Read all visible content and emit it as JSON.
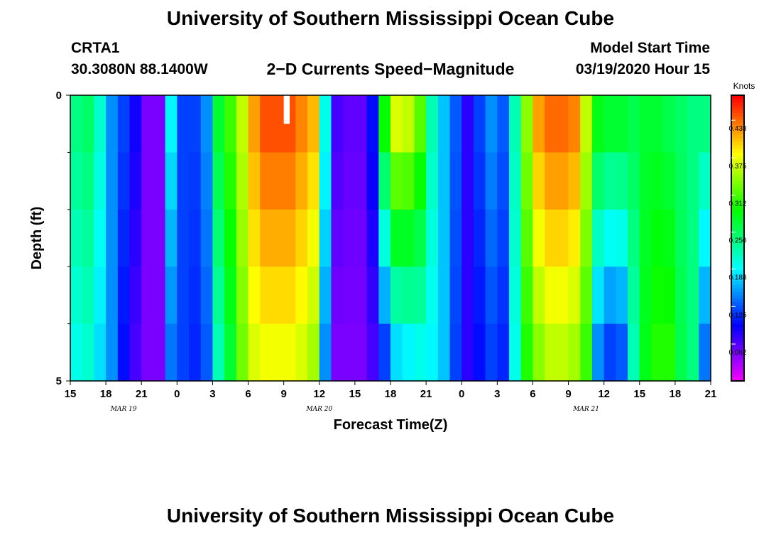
{
  "header": {
    "title": "University of Southern Mississippi Ocean Cube",
    "station": "CRTA1",
    "location": "30.3080N 88.1400W",
    "subtitle": "2−D Currents Speed−Magnitude",
    "model_start_label": "Model Start Time",
    "model_start_value": "03/19/2020 Hour 15"
  },
  "footer": {
    "title": "University of Southern Mississippi Ocean Cube"
  },
  "chart_data": {
    "type": "heatmap",
    "title": "2−D Currents Speed−Magnitude",
    "xlabel": "Forecast Time(Z)",
    "ylabel": "Depth (ft)",
    "x_start_hour": 15,
    "x_end_hour": 69,
    "x_tick_hours": [
      15,
      18,
      21,
      24,
      27,
      30,
      33,
      36,
      39,
      42,
      45,
      48,
      51,
      54,
      57,
      60,
      63,
      66,
      69
    ],
    "x_tick_labels": [
      "15",
      "18",
      "21",
      "0",
      "3",
      "6",
      "9",
      "12",
      "15",
      "18",
      "21",
      "0",
      "3",
      "6",
      "9",
      "12",
      "15",
      "18",
      "21"
    ],
    "date_labels": [
      {
        "text": "MAR 19",
        "hour": 19.5
      },
      {
        "text": "MAR 20",
        "hour": 36
      },
      {
        "text": "MAR 21",
        "hour": 58.5
      }
    ],
    "y_range": [
      0,
      5
    ],
    "y_tick_labels": [
      "0",
      "5"
    ],
    "y_minor_ticks": [
      1,
      2,
      3,
      4
    ],
    "depth_bands": 5,
    "colorbar": {
      "unit": "Knots",
      "min": 0.0,
      "max": 0.48,
      "tick_values": [
        0.438,
        0.375,
        0.312,
        0.25,
        0.188,
        0.125,
        0.062
      ],
      "tick_labels": [
        "0.438",
        "0.375",
        "0.312",
        "0.250",
        "0.188",
        "0.125",
        "0.062"
      ]
    },
    "missing": {
      "hour_start": 33,
      "hour_end": 33.5,
      "depth_start": 0,
      "depth_end": 0.5
    },
    "profile": {
      "hours": [
        15,
        16,
        17,
        18,
        19,
        20,
        21,
        22,
        23,
        24,
        25,
        26,
        27,
        28,
        29,
        30,
        31,
        32,
        33,
        34,
        35,
        36,
        37,
        38,
        39,
        40,
        41,
        42,
        43,
        44,
        45,
        46,
        47,
        48,
        49,
        50,
        51,
        52,
        53,
        54,
        55,
        56,
        57,
        58,
        59,
        60,
        61,
        62,
        63,
        64,
        65,
        66,
        67,
        68,
        69
      ],
      "speed_top": [
        0.24,
        0.25,
        0.21,
        0.15,
        0.12,
        0.09,
        0.05,
        0.05,
        0.19,
        0.12,
        0.12,
        0.15,
        0.27,
        0.31,
        0.36,
        0.42,
        0.45,
        0.45,
        0.45,
        0.43,
        0.41,
        0.2,
        0.07,
        0.06,
        0.06,
        0.1,
        0.29,
        0.37,
        0.36,
        0.32,
        0.22,
        0.17,
        0.13,
        0.08,
        0.12,
        0.15,
        0.13,
        0.22,
        0.34,
        0.42,
        0.44,
        0.44,
        0.43,
        0.36,
        0.28,
        0.27,
        0.27,
        0.26,
        0.27,
        0.27,
        0.26,
        0.25,
        0.24,
        0.24,
        0.21
      ],
      "speed_bottom": [
        0.2,
        0.21,
        0.18,
        0.15,
        0.1,
        0.07,
        0.05,
        0.05,
        0.14,
        0.12,
        0.11,
        0.13,
        0.22,
        0.27,
        0.33,
        0.37,
        0.38,
        0.38,
        0.38,
        0.37,
        0.35,
        0.15,
        0.05,
        0.05,
        0.05,
        0.07,
        0.12,
        0.18,
        0.19,
        0.2,
        0.19,
        0.17,
        0.12,
        0.08,
        0.1,
        0.12,
        0.11,
        0.2,
        0.3,
        0.34,
        0.36,
        0.36,
        0.35,
        0.31,
        0.15,
        0.12,
        0.13,
        0.22,
        0.28,
        0.3,
        0.3,
        0.26,
        0.24,
        0.14,
        0.18
      ]
    }
  }
}
